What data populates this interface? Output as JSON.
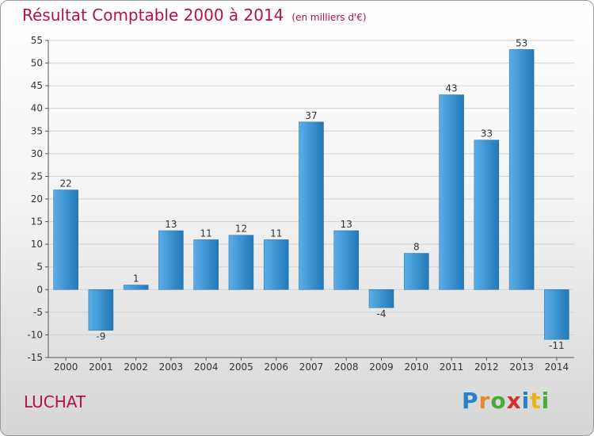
{
  "header": {
    "title": "Résultat Comptable 2000 à 2014",
    "unit": "(en milliers d'€)"
  },
  "commune": "LUCHAT",
  "logo": {
    "text": "Proxiti",
    "letters": [
      {
        "ch": "P",
        "color": "#2a7fc9"
      },
      {
        "ch": "r",
        "color": "#e8882a"
      },
      {
        "ch": "o",
        "color": "#4aa83c"
      },
      {
        "ch": "x",
        "color": "#d62f2f"
      },
      {
        "ch": "i",
        "color": "#2a7fc9"
      },
      {
        "ch": "t",
        "color": "#e8b41c"
      },
      {
        "ch": "i",
        "color": "#4aa83c"
      }
    ]
  },
  "colors": {
    "bar_light": "#5aaee8",
    "bar_dark": "#2378b8",
    "title": "#b5104a",
    "grid": "#d0d0d0"
  },
  "chart_data": {
    "type": "bar",
    "categories": [
      "2000",
      "2001",
      "2002",
      "2003",
      "2004",
      "2005",
      "2006",
      "2007",
      "2008",
      "2009",
      "2010",
      "2011",
      "2012",
      "2013",
      "2014"
    ],
    "values": [
      22,
      -9,
      1,
      13,
      11,
      12,
      11,
      37,
      13,
      -4,
      8,
      43,
      33,
      53,
      -11
    ],
    "title": "Résultat Comptable 2000 à 2014",
    "ylim": [
      -15,
      55
    ],
    "yticks": [
      -15,
      -10,
      -5,
      0,
      5,
      10,
      15,
      20,
      25,
      30,
      35,
      40,
      45,
      50,
      55
    ],
    "grid": true,
    "legend": "none"
  }
}
